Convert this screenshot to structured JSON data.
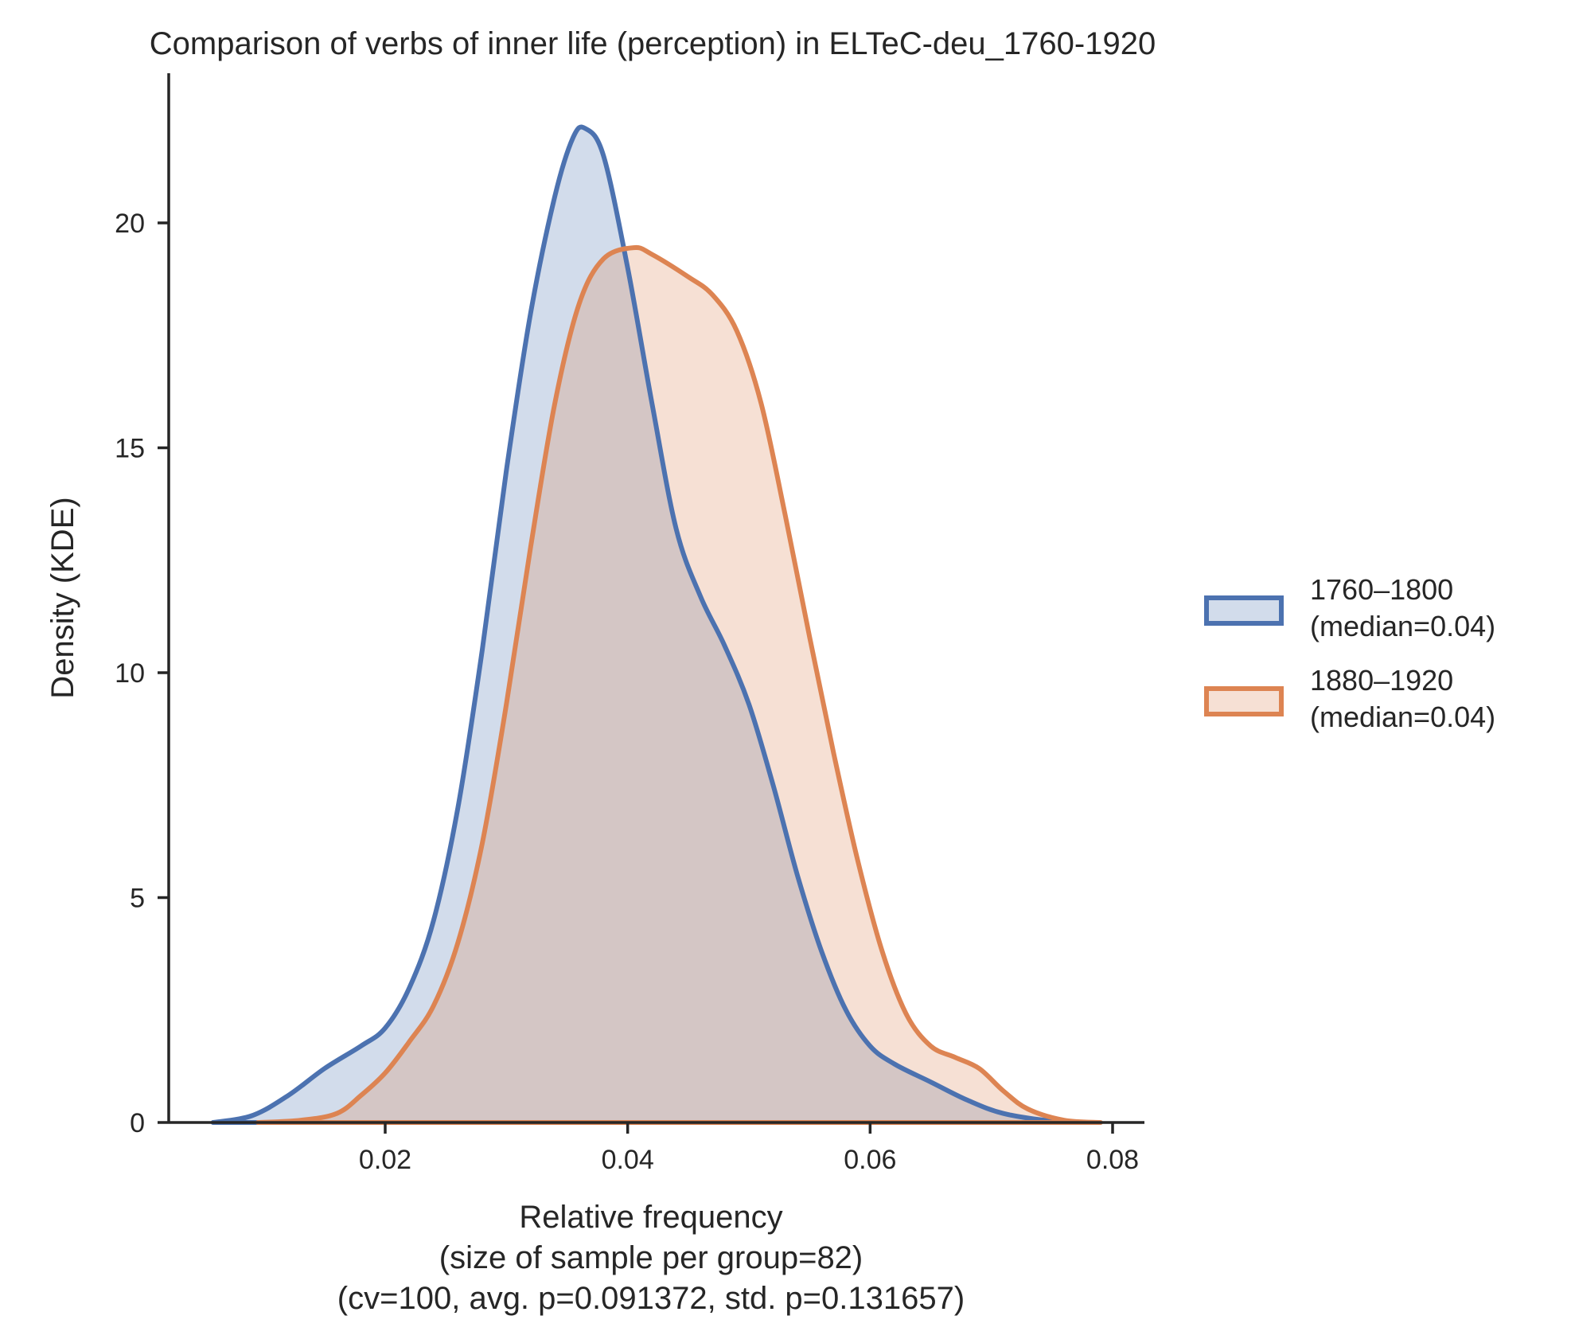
{
  "chart_data": {
    "type": "area",
    "subtype": "kde",
    "title": "Comparison of verbs of inner life (perception) in ELTeC-deu_1760-1920",
    "xlabel": [
      "Relative frequency",
      "(size of sample per group=82)",
      "(cv=100, avg. p=0.091372, std. p=0.131657)"
    ],
    "ylabel": "Density (KDE)",
    "xlim": [
      0.002,
      0.0825
    ],
    "ylim": [
      0,
      23.3
    ],
    "x_ticks": [
      0.02,
      0.04,
      0.06,
      0.08
    ],
    "x_tick_labels": [
      "0.02",
      "0.04",
      "0.06",
      "0.08"
    ],
    "y_ticks": [
      0,
      5,
      10,
      15,
      20
    ],
    "y_tick_labels": [
      "0",
      "5",
      "10",
      "15",
      "20"
    ],
    "grid": false,
    "legend_position": "right-center",
    "series": [
      {
        "name": "1760–1800\n(median=0.04)",
        "legend_lines": [
          "1760–1800",
          "(median=0.04)"
        ],
        "color": "#4c72b0",
        "fill_opacity": 0.25,
        "points": [
          [
            0.0058,
            0.0
          ],
          [
            0.009,
            0.15
          ],
          [
            0.012,
            0.6
          ],
          [
            0.015,
            1.2
          ],
          [
            0.018,
            1.7
          ],
          [
            0.02,
            2.1
          ],
          [
            0.022,
            3.0
          ],
          [
            0.024,
            4.5
          ],
          [
            0.026,
            7.0
          ],
          [
            0.028,
            10.5
          ],
          [
            0.03,
            14.5
          ],
          [
            0.032,
            18.0
          ],
          [
            0.034,
            20.6
          ],
          [
            0.0355,
            21.9
          ],
          [
            0.0365,
            22.1
          ],
          [
            0.038,
            21.5
          ],
          [
            0.04,
            19.0
          ],
          [
            0.042,
            16.0
          ],
          [
            0.044,
            13.2
          ],
          [
            0.046,
            11.7
          ],
          [
            0.048,
            10.6
          ],
          [
            0.05,
            9.3
          ],
          [
            0.052,
            7.5
          ],
          [
            0.054,
            5.5
          ],
          [
            0.056,
            3.8
          ],
          [
            0.058,
            2.5
          ],
          [
            0.06,
            1.7
          ],
          [
            0.062,
            1.3
          ],
          [
            0.065,
            0.9
          ],
          [
            0.068,
            0.5
          ],
          [
            0.071,
            0.2
          ],
          [
            0.075,
            0.03
          ],
          [
            0.078,
            0.0
          ]
        ]
      },
      {
        "name": "1880–1920\n(median=0.04)",
        "legend_lines": [
          "1880–1920",
          "(median=0.04)"
        ],
        "color": "#dd8452",
        "fill_opacity": 0.25,
        "points": [
          [
            0.0095,
            0.0
          ],
          [
            0.013,
            0.05
          ],
          [
            0.016,
            0.2
          ],
          [
            0.018,
            0.6
          ],
          [
            0.02,
            1.1
          ],
          [
            0.022,
            1.8
          ],
          [
            0.024,
            2.6
          ],
          [
            0.026,
            4.0
          ],
          [
            0.028,
            6.2
          ],
          [
            0.03,
            9.3
          ],
          [
            0.032,
            12.8
          ],
          [
            0.034,
            16.0
          ],
          [
            0.036,
            18.2
          ],
          [
            0.038,
            19.2
          ],
          [
            0.0405,
            19.45
          ],
          [
            0.042,
            19.3
          ],
          [
            0.045,
            18.8
          ],
          [
            0.047,
            18.4
          ],
          [
            0.049,
            17.6
          ],
          [
            0.051,
            16.0
          ],
          [
            0.053,
            13.5
          ],
          [
            0.055,
            10.8
          ],
          [
            0.057,
            8.2
          ],
          [
            0.059,
            5.8
          ],
          [
            0.061,
            3.8
          ],
          [
            0.063,
            2.4
          ],
          [
            0.065,
            1.7
          ],
          [
            0.067,
            1.45
          ],
          [
            0.069,
            1.2
          ],
          [
            0.071,
            0.7
          ],
          [
            0.073,
            0.3
          ],
          [
            0.076,
            0.05
          ],
          [
            0.079,
            0.0
          ]
        ]
      }
    ]
  }
}
